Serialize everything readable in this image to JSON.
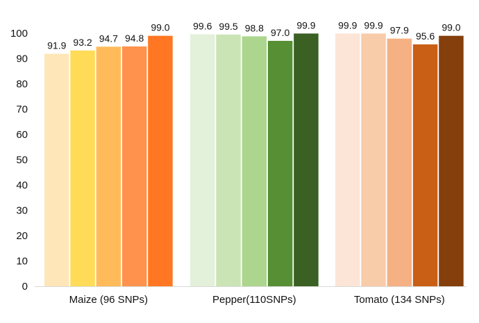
{
  "chart_data": {
    "type": "bar",
    "title": "",
    "xlabel": "",
    "ylabel": "",
    "ylim": [
      0,
      100
    ],
    "yticks": [
      0,
      10,
      20,
      30,
      40,
      50,
      60,
      70,
      80,
      90,
      100
    ],
    "grid": false,
    "legend": "none",
    "groups": [
      {
        "label": "Maize (96 SNPs)",
        "values": [
          91.9,
          93.2,
          94.7,
          94.8,
          99.0
        ],
        "value_labels": [
          "91.9",
          "93.2",
          "94.7",
          "94.8",
          "99.0"
        ],
        "colors": [
          "#FEE6B8",
          "#FFDB58",
          "#FFBB5A",
          "#FF924D",
          "#FF7722"
        ]
      },
      {
        "label": "Pepper(110SNPs)",
        "values": [
          99.6,
          99.5,
          98.8,
          97.0,
          99.9
        ],
        "value_labels": [
          "99.6",
          "99.5",
          "98.8",
          "97.0",
          "99.9"
        ],
        "colors": [
          "#E3F0DA",
          "#CAE4B5",
          "#ACD68E",
          "#568F34",
          "#3A6024"
        ]
      },
      {
        "label": "Tomato (134 SNPs)",
        "values": [
          99.9,
          99.9,
          97.9,
          95.6,
          99.0
        ],
        "value_labels": [
          "99.9",
          "99.9",
          "97.9",
          "95.6",
          "99.0"
        ],
        "colors": [
          "#FCE5D6",
          "#F8CBA9",
          "#F5B183",
          "#C95F14",
          "#843F0C"
        ]
      }
    ]
  }
}
